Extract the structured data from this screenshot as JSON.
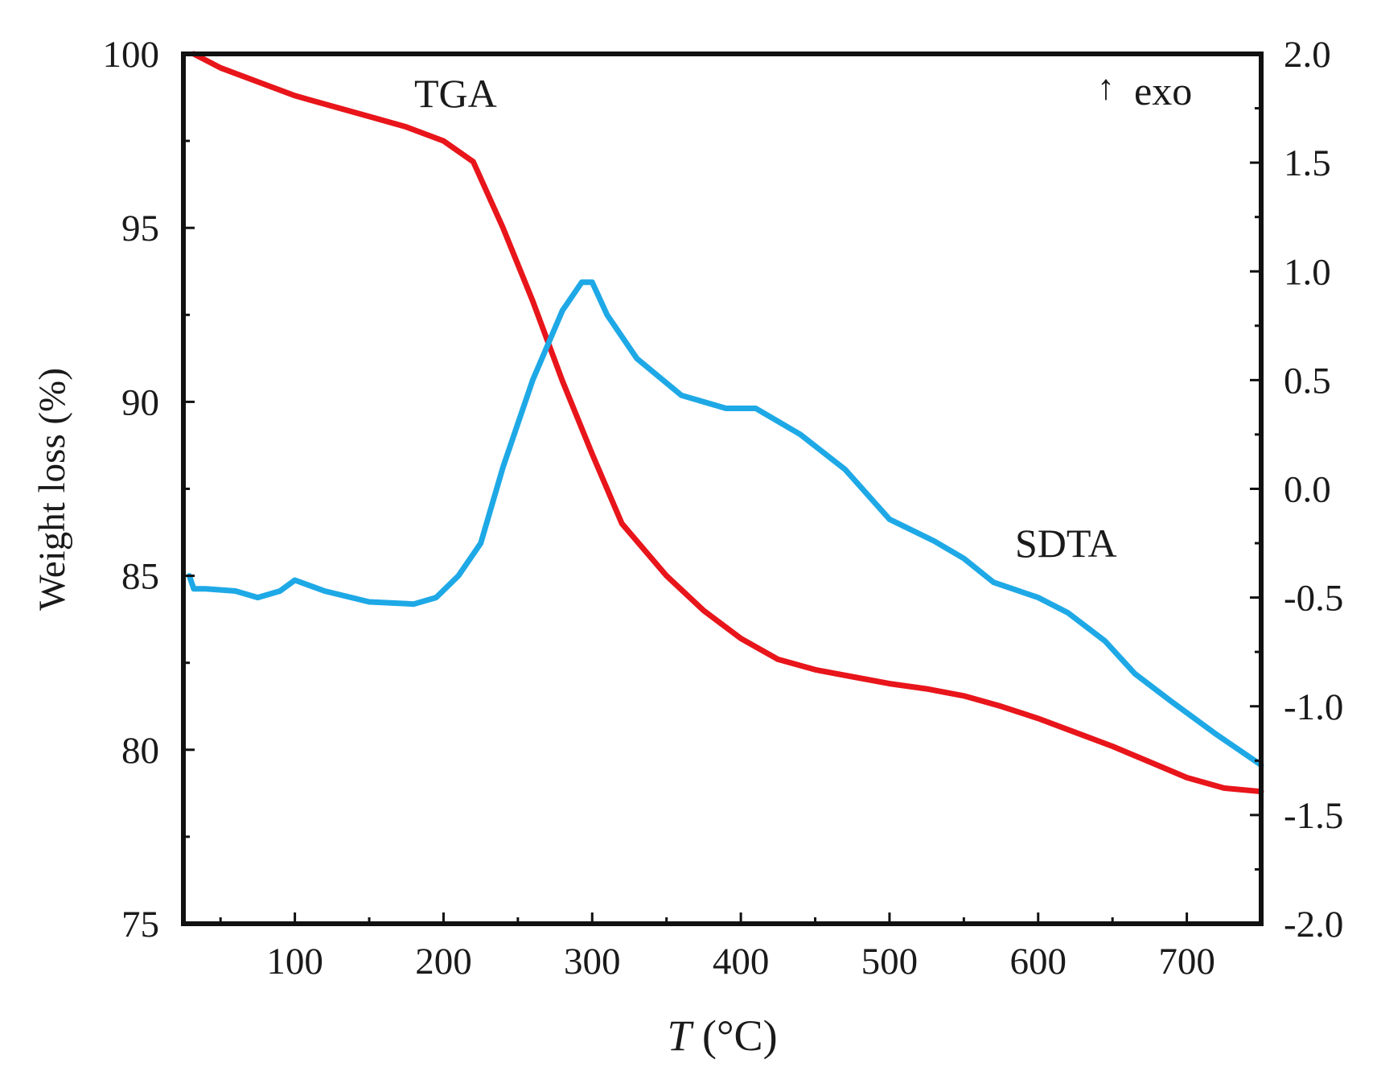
{
  "chart_data": {
    "type": "line",
    "title": "",
    "xlabel_var": "T",
    "xlabel_unit": " (°C)",
    "ylabel": "Weight loss (%)",
    "y2label": "",
    "xlim": [
      25,
      750
    ],
    "ylim": [
      75,
      100
    ],
    "y2lim": [
      -2.0,
      2.0
    ],
    "x_ticks": [
      100,
      200,
      300,
      400,
      500,
      600,
      700
    ],
    "x_minor_ticks": [
      50,
      150,
      250,
      350,
      450,
      550,
      650,
      750
    ],
    "y_ticks": [
      75,
      80,
      85,
      90,
      95,
      100
    ],
    "y2_ticks": [
      "2.0",
      "1.5",
      "1.0",
      "0.5",
      "0.0",
      "-0.5",
      "-1.0",
      "-1.5",
      "-2.0"
    ],
    "grid": false,
    "annotations": {
      "tga": "TGA",
      "sdta": "SDTA",
      "exo_arrow": "↑",
      "exo": "exo"
    },
    "series": [
      {
        "name": "TGA",
        "axis": "left",
        "color": "#e8151b",
        "x": [
          32,
          50,
          75,
          100,
          125,
          150,
          175,
          200,
          220,
          240,
          260,
          280,
          300,
          320,
          350,
          375,
          400,
          425,
          450,
          475,
          500,
          525,
          550,
          575,
          600,
          625,
          650,
          675,
          700,
          725,
          750
        ],
        "y": [
          100,
          99.6,
          99.2,
          98.8,
          98.5,
          98.2,
          97.9,
          97.5,
          96.9,
          95.0,
          92.9,
          90.6,
          88.5,
          86.5,
          85.0,
          84.0,
          83.2,
          82.6,
          82.3,
          82.1,
          81.9,
          81.75,
          81.55,
          81.25,
          80.9,
          80.5,
          80.1,
          79.65,
          79.2,
          78.9,
          78.8
        ]
      },
      {
        "name": "SDTA",
        "axis": "right",
        "color": "#1ea9e6",
        "x": [
          29,
          32,
          40,
          60,
          75,
          90,
          100,
          120,
          150,
          180,
          195,
          210,
          225,
          240,
          260,
          280,
          293,
          300,
          310,
          330,
          360,
          390,
          410,
          440,
          470,
          500,
          530,
          550,
          570,
          600,
          620,
          645,
          665,
          690,
          720,
          750
        ],
        "y": [
          -0.4,
          -0.46,
          -0.46,
          -0.47,
          -0.5,
          -0.47,
          -0.42,
          -0.47,
          -0.52,
          -0.53,
          -0.5,
          -0.4,
          -0.25,
          0.1,
          0.5,
          0.82,
          0.95,
          0.95,
          0.8,
          0.6,
          0.43,
          0.37,
          0.37,
          0.25,
          0.09,
          -0.14,
          -0.24,
          -0.32,
          -0.43,
          -0.5,
          -0.57,
          -0.7,
          -0.85,
          -0.98,
          -1.13,
          -1.27
        ]
      }
    ]
  }
}
